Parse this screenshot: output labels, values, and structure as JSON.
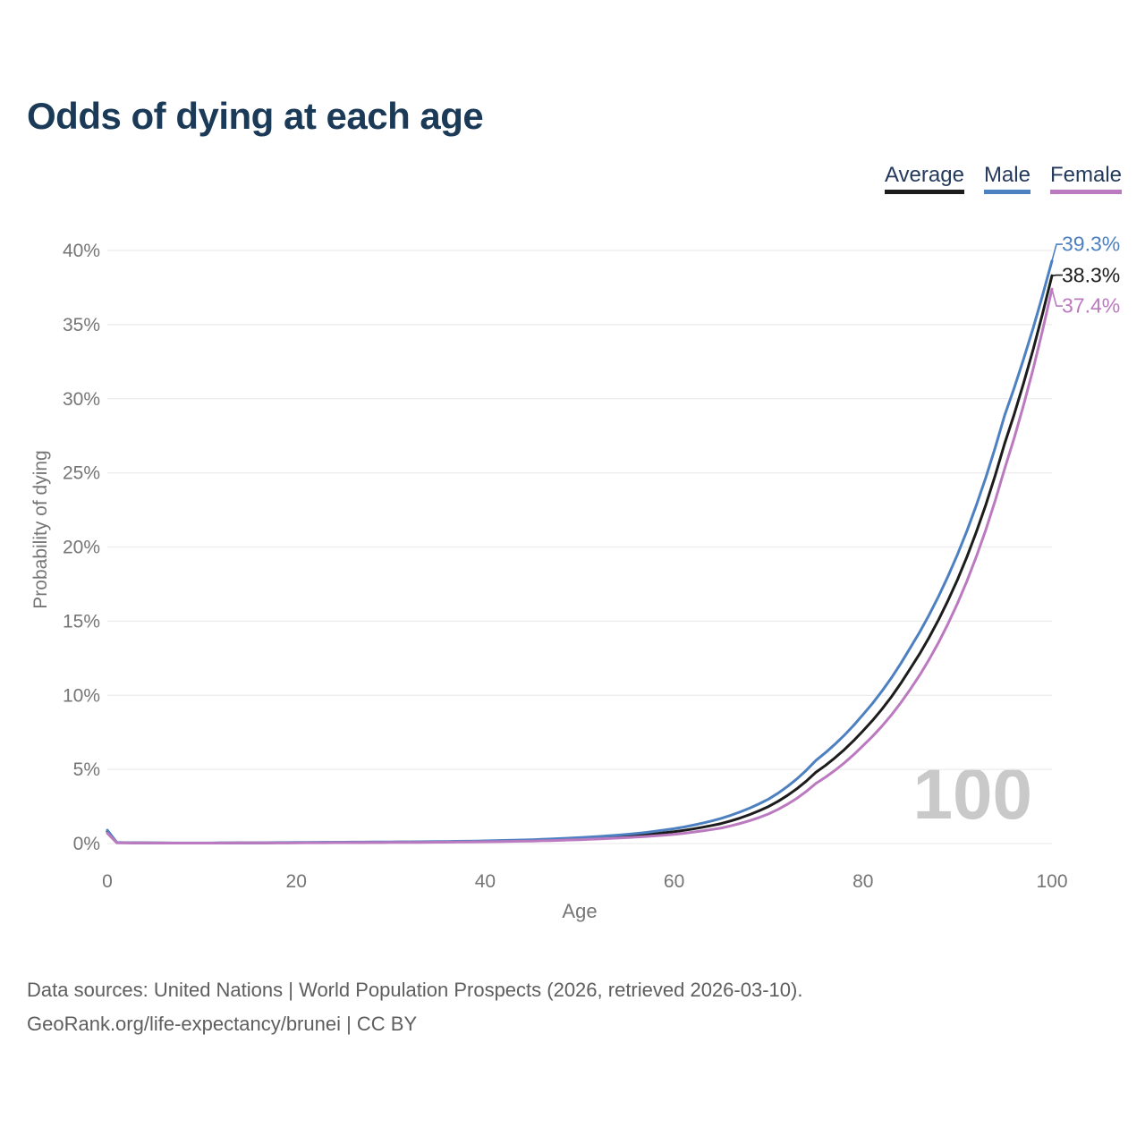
{
  "title": "Odds of dying at each age",
  "legend": [
    {
      "label": "Average",
      "color": "#1c1c1c"
    },
    {
      "label": "Male",
      "color": "#4d80c0"
    },
    {
      "label": "Female",
      "color": "#bb7ac0"
    }
  ],
  "footer": {
    "line1": "Data sources: United Nations | World Population Prospects (2026, retrieved 2026-03-10).",
    "line2": "GeoRank.org/life-expectancy/brunei | CC BY"
  },
  "chart_data": {
    "type": "line",
    "title": "Odds of dying at each age",
    "xlabel": "Age",
    "ylabel": "Probability of dying",
    "xlim": [
      0,
      100
    ],
    "ylim": [
      0,
      40
    ],
    "x_ticks": [
      0,
      20,
      40,
      60,
      80,
      100
    ],
    "y_ticks": [
      0,
      5,
      10,
      15,
      20,
      25,
      30,
      35,
      40
    ],
    "y_tick_suffix": "%",
    "grid": "horizontal",
    "legend_position": "top-right",
    "watermark": "100",
    "x": [
      0,
      1,
      5,
      10,
      15,
      20,
      25,
      30,
      35,
      40,
      45,
      50,
      55,
      60,
      65,
      70,
      75,
      80,
      85,
      90,
      95,
      100
    ],
    "series": [
      {
        "name": "Average",
        "color": "#1c1c1c",
        "end_label": "38.3%",
        "values": [
          0.8,
          0.06,
          0.035,
          0.03,
          0.045,
          0.06,
          0.075,
          0.09,
          0.11,
          0.15,
          0.21,
          0.32,
          0.5,
          0.8,
          1.35,
          2.5,
          4.8,
          7.6,
          11.8,
          17.8,
          27.0,
          38.3
        ]
      },
      {
        "name": "Male",
        "color": "#4d80c0",
        "end_label": "39.3%",
        "values": [
          0.9,
          0.07,
          0.04,
          0.035,
          0.05,
          0.075,
          0.09,
          0.11,
          0.13,
          0.18,
          0.26,
          0.4,
          0.62,
          1.0,
          1.7,
          3.0,
          5.6,
          8.7,
          13.2,
          19.5,
          28.9,
          39.3
        ]
      },
      {
        "name": "Female",
        "color": "#bb7ac0",
        "end_label": "37.4%",
        "values": [
          0.7,
          0.05,
          0.03,
          0.028,
          0.04,
          0.05,
          0.06,
          0.07,
          0.09,
          0.12,
          0.17,
          0.26,
          0.4,
          0.62,
          1.05,
          2.0,
          4.05,
          6.6,
          10.4,
          16.2,
          25.3,
          37.4
        ]
      }
    ]
  }
}
